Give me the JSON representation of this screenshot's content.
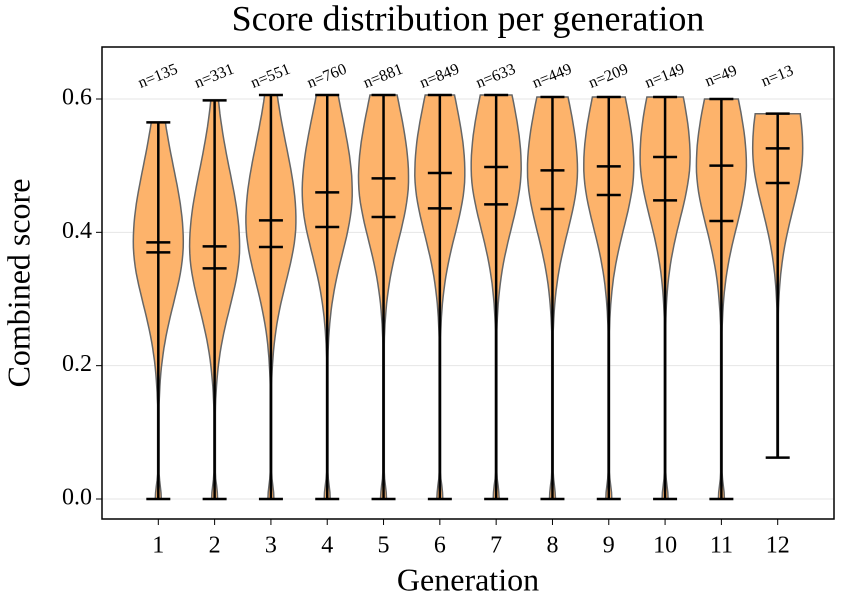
{
  "chart_data": {
    "type": "violin",
    "title": "Score distribution per generation",
    "x_label": "Generation",
    "y_label": "Combined score",
    "categories": [
      "1",
      "2",
      "3",
      "4",
      "5",
      "6",
      "7",
      "8",
      "9",
      "10",
      "11",
      "12"
    ],
    "n": [
      135,
      331,
      551,
      760,
      881,
      849,
      633,
      449,
      209,
      149,
      49,
      13
    ],
    "n_labels": [
      "n=135",
      "n=331",
      "n=551",
      "n=760",
      "n=881",
      "n=849",
      "n=633",
      "n=449",
      "n=209",
      "n=149",
      "n=49",
      "n=13"
    ],
    "min": [
      0,
      0,
      0,
      0,
      0,
      0,
      0,
      0,
      0,
      0,
      0,
      0.062
    ],
    "max": [
      0.565,
      0.598,
      0.606,
      0.606,
      0.606,
      0.606,
      0.606,
      0.603,
      0.603,
      0.603,
      0.6,
      0.578
    ],
    "median": [
      0.385,
      0.379,
      0.418,
      0.46,
      0.481,
      0.489,
      0.498,
      0.493,
      0.499,
      0.513,
      0.5,
      0.526
    ],
    "mean": [
      0.37,
      0.346,
      0.378,
      0.408,
      0.423,
      0.436,
      0.442,
      0.435,
      0.456,
      0.448,
      0.417,
      0.474
    ],
    "color": "#fdb36b",
    "ylim": [
      -0.03,
      0.678
    ],
    "yticks": [
      {
        "value": 0,
        "label": "0.0"
      },
      0.2,
      0.4,
      0.6
    ],
    "grid": true
  }
}
